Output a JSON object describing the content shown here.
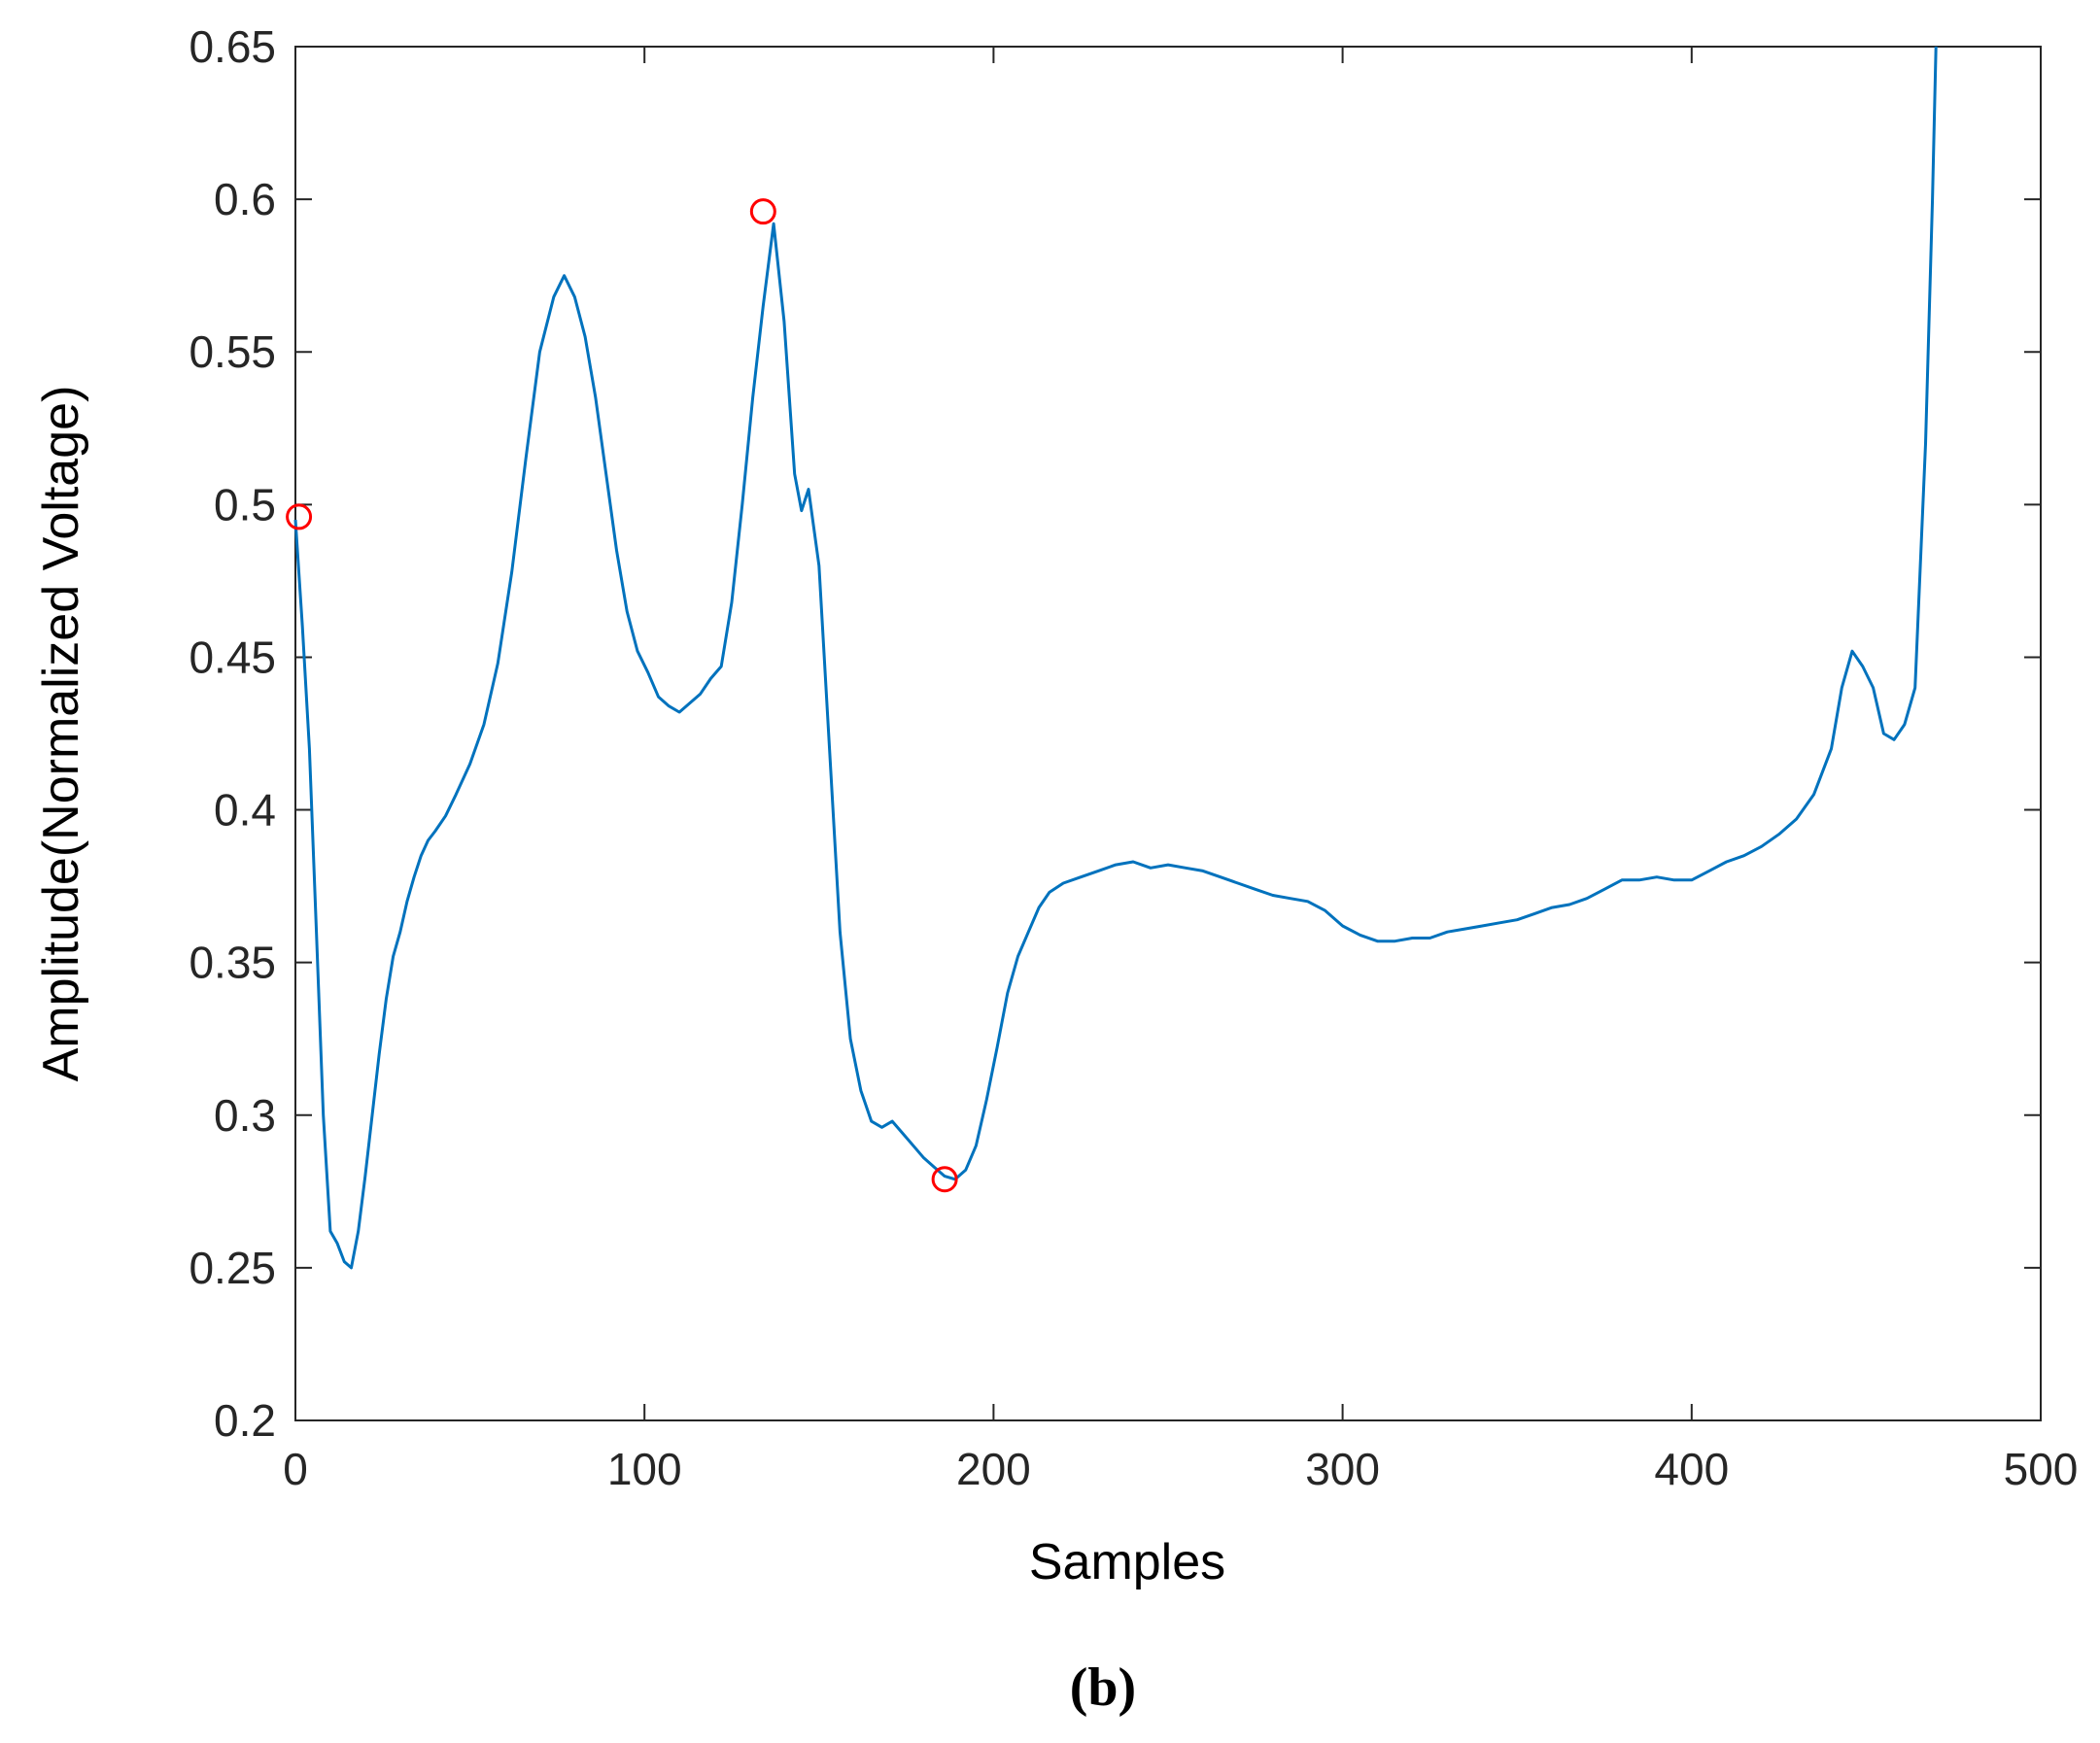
{
  "chart_data": {
    "type": "line",
    "title": "",
    "xlabel": "Samples",
    "ylabel": "Amplitude(Normalized Voltage)",
    "panel_label": "(b)",
    "xlim": [
      0,
      500
    ],
    "ylim": [
      0.2,
      0.65
    ],
    "xticks": [
      0,
      100,
      200,
      300,
      400,
      500
    ],
    "yticks": [
      0.2,
      0.25,
      0.3,
      0.35,
      0.4,
      0.45,
      0.5,
      0.55,
      0.6,
      0.65
    ],
    "xtick_labels": [
      "0",
      "100",
      "200",
      "300",
      "400",
      "500"
    ],
    "ytick_labels": [
      "0.2",
      "0.25",
      "0.3",
      "0.35",
      "0.4",
      "0.45",
      "0.5",
      "0.55",
      "0.6",
      "0.65"
    ],
    "grid": false,
    "line_color": "#0072BD",
    "marker_color": "#FF0000",
    "series": [
      {
        "x": [
          0,
          2,
          4,
          6,
          8,
          10,
          12,
          14,
          16,
          18,
          20,
          22,
          24,
          26,
          28,
          30,
          32,
          34,
          36,
          38,
          40,
          43,
          46,
          50,
          54,
          58,
          62,
          66,
          70,
          74,
          77,
          80,
          83,
          86,
          89,
          92,
          95,
          98,
          101,
          104,
          107,
          110,
          113,
          116,
          119,
          122,
          125,
          128,
          131,
          134,
          137,
          140,
          143,
          145,
          147,
          150,
          153,
          156,
          159,
          162,
          165,
          168,
          171,
          174,
          177,
          180,
          183,
          186,
          189,
          192,
          195,
          198,
          201,
          204,
          207,
          210,
          213,
          216,
          220,
          225,
          230,
          235,
          240,
          245,
          250,
          255,
          260,
          265,
          270,
          275,
          280,
          285,
          290,
          295,
          300,
          305,
          310,
          315,
          320,
          325,
          330,
          335,
          340,
          345,
          350,
          355,
          360,
          365,
          370,
          375,
          380,
          385,
          390,
          395,
          400,
          405,
          410,
          415,
          420,
          425,
          430,
          435,
          440,
          443,
          446,
          449,
          452,
          455,
          458,
          461,
          464,
          467,
          469,
          470
        ],
        "y": [
          0.495,
          0.46,
          0.42,
          0.36,
          0.3,
          0.262,
          0.258,
          0.252,
          0.25,
          0.262,
          0.28,
          0.3,
          0.32,
          0.338,
          0.352,
          0.36,
          0.37,
          0.378,
          0.385,
          0.39,
          0.393,
          0.398,
          0.405,
          0.415,
          0.428,
          0.448,
          0.478,
          0.515,
          0.55,
          0.568,
          0.575,
          0.568,
          0.555,
          0.535,
          0.51,
          0.485,
          0.465,
          0.452,
          0.445,
          0.437,
          0.434,
          0.432,
          0.435,
          0.438,
          0.443,
          0.447,
          0.468,
          0.5,
          0.535,
          0.565,
          0.592,
          0.56,
          0.51,
          0.498,
          0.505,
          0.48,
          0.42,
          0.36,
          0.325,
          0.308,
          0.298,
          0.296,
          0.298,
          0.294,
          0.29,
          0.286,
          0.283,
          0.28,
          0.279,
          0.282,
          0.29,
          0.305,
          0.322,
          0.34,
          0.352,
          0.36,
          0.368,
          0.373,
          0.376,
          0.378,
          0.38,
          0.382,
          0.383,
          0.381,
          0.382,
          0.381,
          0.38,
          0.378,
          0.376,
          0.374,
          0.372,
          0.371,
          0.37,
          0.367,
          0.362,
          0.359,
          0.357,
          0.357,
          0.358,
          0.358,
          0.36,
          0.361,
          0.362,
          0.363,
          0.364,
          0.366,
          0.368,
          0.369,
          0.371,
          0.374,
          0.377,
          0.377,
          0.378,
          0.377,
          0.377,
          0.38,
          0.383,
          0.385,
          0.388,
          0.392,
          0.397,
          0.405,
          0.42,
          0.44,
          0.452,
          0.447,
          0.44,
          0.425,
          0.423,
          0.428,
          0.44,
          0.52,
          0.6,
          0.65
        ]
      }
    ],
    "markers": [
      {
        "x": 1,
        "y": 0.496
      },
      {
        "x": 134,
        "y": 0.596
      },
      {
        "x": 186,
        "y": 0.279
      }
    ]
  }
}
